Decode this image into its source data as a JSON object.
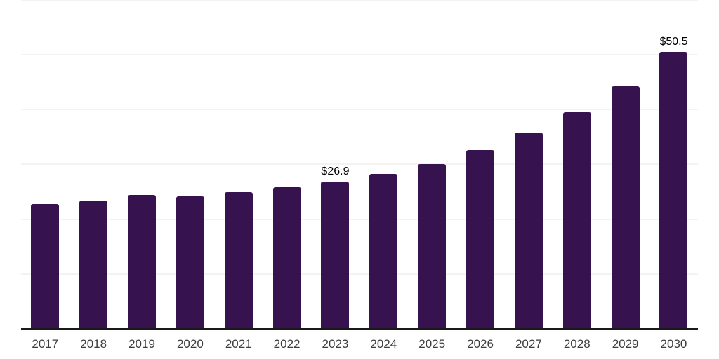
{
  "chart_data": {
    "type": "bar",
    "title": "",
    "xlabel": "",
    "ylabel": "",
    "categories": [
      "2017",
      "2018",
      "2019",
      "2020",
      "2021",
      "2022",
      "2023",
      "2024",
      "2025",
      "2026",
      "2027",
      "2028",
      "2029",
      "2030"
    ],
    "values": [
      22.8,
      23.4,
      24.4,
      24.2,
      24.9,
      25.8,
      26.9,
      28.3,
      30.0,
      32.6,
      35.8,
      39.5,
      44.3,
      50.5
    ],
    "data_labels": [
      {
        "category": "2023",
        "text": "$26.9"
      },
      {
        "category": "2030",
        "text": "$50.5"
      }
    ],
    "ylim": [
      0,
      60
    ],
    "grid": {
      "horizontal": true,
      "step": 10,
      "visible": true
    },
    "legend": "none",
    "colors": {
      "background": "#ffffff",
      "bar": "#36124E",
      "gridline": "#f3f3f6",
      "axis_line": "#1a1a1a",
      "tick_label": "#3c3c3c",
      "value_label": "#000000"
    }
  }
}
